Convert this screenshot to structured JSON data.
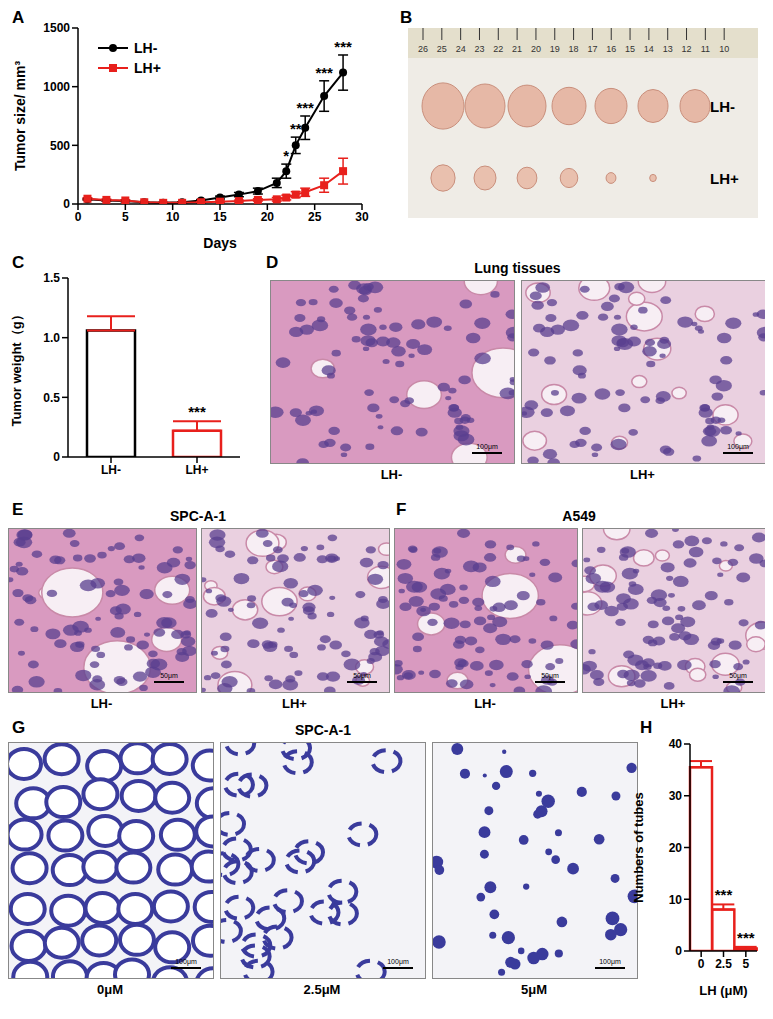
{
  "chart_data": [
    {
      "panel": "A",
      "type": "line",
      "x_label": "Days",
      "y_label": "Tumor size/ mm³",
      "x": [
        1,
        3,
        5,
        7,
        9,
        11,
        13,
        15,
        17,
        19,
        21,
        22,
        23,
        24,
        26,
        28
      ],
      "xlim": [
        0,
        30
      ],
      "xticks": [
        0,
        5,
        10,
        15,
        20,
        25,
        30
      ],
      "ylim": [
        0,
        1500
      ],
      "yticks": [
        0,
        500,
        1000,
        1500
      ],
      "legend": "upper left",
      "series": [
        {
          "name": "LH-",
          "color": "#000000",
          "marker": "circle",
          "values": [
            40,
            30,
            25,
            15,
            10,
            15,
            30,
            55,
            80,
            110,
            180,
            280,
            500,
            650,
            920,
            1120
          ],
          "errors": [
            5,
            5,
            5,
            3,
            3,
            4,
            8,
            12,
            18,
            25,
            40,
            60,
            70,
            100,
            130,
            150
          ],
          "annotations": [
            null,
            null,
            null,
            null,
            null,
            null,
            null,
            null,
            null,
            null,
            null,
            "*",
            "**",
            "***",
            "***",
            "***"
          ]
        },
        {
          "name": "LH+",
          "color": "#e8201c",
          "marker": "square",
          "values": [
            45,
            35,
            30,
            15,
            10,
            10,
            15,
            20,
            25,
            35,
            40,
            55,
            80,
            100,
            160,
            280
          ],
          "errors": [
            8,
            6,
            5,
            3,
            3,
            3,
            5,
            6,
            8,
            10,
            15,
            20,
            25,
            35,
            60,
            110
          ]
        }
      ]
    },
    {
      "panel": "C",
      "type": "bar",
      "y_label": "Tumor weight（g）",
      "categories": [
        "LH-",
        "LH+"
      ],
      "values": [
        1.06,
        0.22
      ],
      "errors": [
        0.12,
        0.08
      ],
      "annotations": [
        null,
        "***"
      ],
      "colors": [
        "#000000",
        "#e8201c"
      ],
      "ylim": [
        0,
        1.5
      ],
      "yticks": [
        0,
        0.5,
        {
          "value": 1,
          "label": "1.0"
        },
        1.5
      ]
    },
    {
      "panel": "H",
      "type": "bar",
      "x_label": "LH (μM)",
      "y_label": "Numbers of tubes",
      "categories": [
        "0",
        "2.5",
        "5"
      ],
      "values": [
        35.5,
        8,
        0.5
      ],
      "errors": [
        1.2,
        1,
        0.3
      ],
      "annotations": [
        null,
        "***",
        "***"
      ],
      "color": "#e8201c",
      "ylim": [
        0,
        40
      ],
      "yticks": [
        0,
        10,
        20,
        30,
        40
      ]
    }
  ],
  "images": [
    {
      "panel": "B",
      "labels": [
        "LH-",
        "LH+"
      ],
      "ruler": [
        "26",
        "25",
        "24",
        "23",
        "22",
        "21",
        "20",
        "19",
        "18",
        "17",
        "16",
        "15",
        "14",
        "13",
        "12",
        "11",
        "10"
      ]
    },
    {
      "panel": "D",
      "title": "Lung tissues",
      "labels": [
        "LH-",
        "LH+"
      ],
      "scale_bar": "100μm"
    },
    {
      "panel": "E",
      "title": "SPC-A-1",
      "labels": [
        "LH-",
        "LH+"
      ],
      "scale_bar": "50μm"
    },
    {
      "panel": "F",
      "title": "A549",
      "labels": [
        "LH-",
        "LH+"
      ],
      "scale_bar": "50μm"
    },
    {
      "panel": "G",
      "title": "SPC-A-1",
      "labels": [
        "0μM",
        "2.5μM",
        "5μM"
      ],
      "scale_bar": "100μm"
    }
  ]
}
